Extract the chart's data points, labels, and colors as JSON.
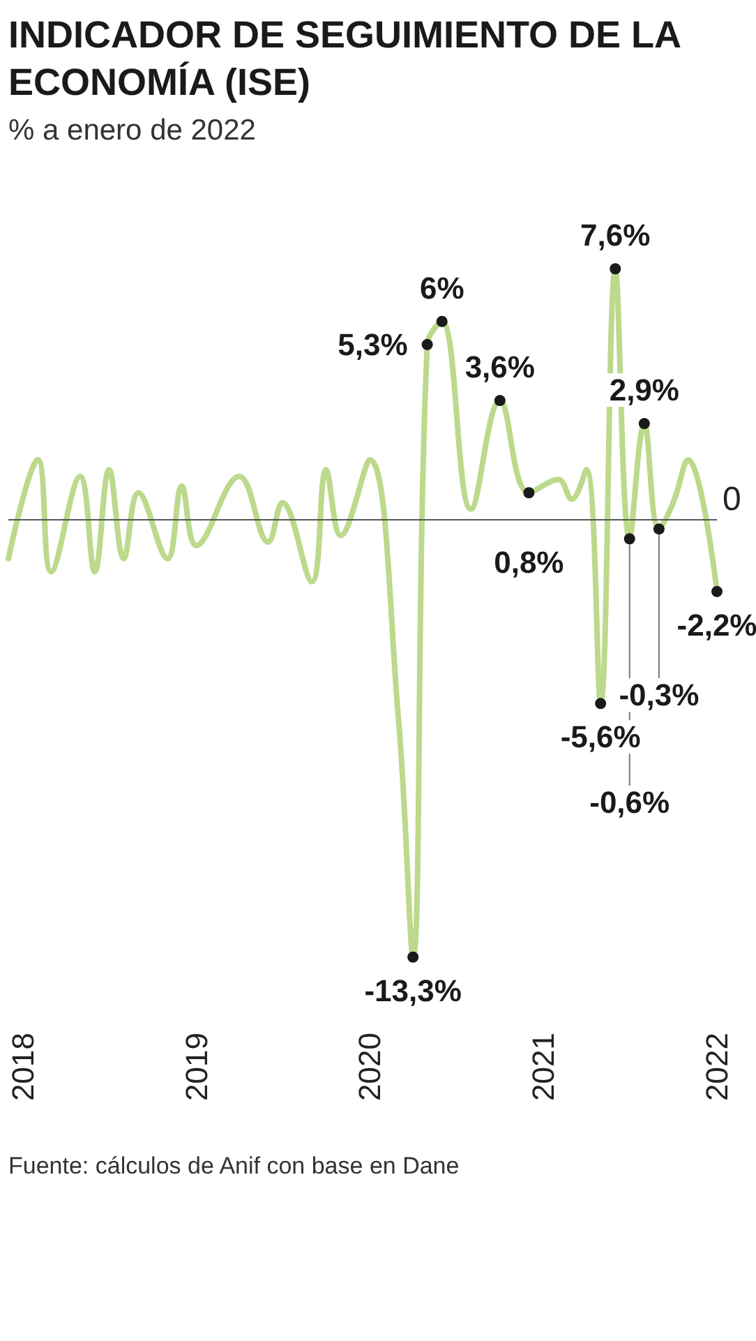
{
  "chart_data": {
    "type": "line",
    "title": "INDICADOR DE SEGUIMIENTO DE LA ECONOMÍA (ISE)",
    "subtitle": "% a enero de 2022",
    "x": [
      "2017-12",
      "2018-02",
      "2018-03",
      "2018-05",
      "2018-06",
      "2018-07",
      "2018-08",
      "2018-09",
      "2018-11",
      "2018-12",
      "2019-01",
      "2019-04",
      "2019-06",
      "2019-07",
      "2019-09",
      "2019-10",
      "2019-11",
      "2020-01",
      "2020-03",
      "2020-04",
      "2020-05",
      "2020-06",
      "2020-08",
      "2020-10",
      "2020-12",
      "2021-02",
      "2021-03",
      "2021-04",
      "2021-05",
      "2021-06",
      "2021-07",
      "2021-08",
      "2021-09",
      "2021-10",
      "2021-11",
      "2022-01"
    ],
    "series": [
      {
        "color": "#bcd98c",
        "values": [
          -1.2,
          1.8,
          -1.6,
          1.3,
          -1.6,
          1.5,
          -1.2,
          0.8,
          -1.2,
          1.0,
          -0.8,
          1.3,
          -0.7,
          0.5,
          -1.9,
          1.5,
          -0.5,
          1.8,
          -6,
          -13.3,
          5.3,
          6,
          0.3,
          3.6,
          0.8,
          1.2,
          0.6,
          1.5,
          -5.6,
          7.6,
          -0.6,
          2.9,
          -0.3,
          0.5,
          1.8,
          -2.2
        ],
        "value_labels": [
          null,
          null,
          null,
          null,
          null,
          null,
          null,
          null,
          null,
          null,
          null,
          null,
          null,
          null,
          null,
          null,
          null,
          null,
          null,
          "-13,3%",
          "5,3%",
          "6%",
          null,
          "3,6%",
          "0,8%",
          null,
          null,
          null,
          "-5,6%",
          "7,6%",
          "-0,6%",
          "2,9%",
          "-0,3%",
          null,
          null,
          "-2,2%"
        ]
      }
    ],
    "xlim": [
      "2017-12",
      "2022-01"
    ],
    "xticks": [
      "2018",
      "2019",
      "2020",
      "2021",
      "2022"
    ],
    "ref_lines": [
      {
        "axis": "y",
        "value": 0,
        "label": "0"
      }
    ],
    "annotations": [
      "Fuente: cálculos de Anif con base en Dane"
    ]
  }
}
